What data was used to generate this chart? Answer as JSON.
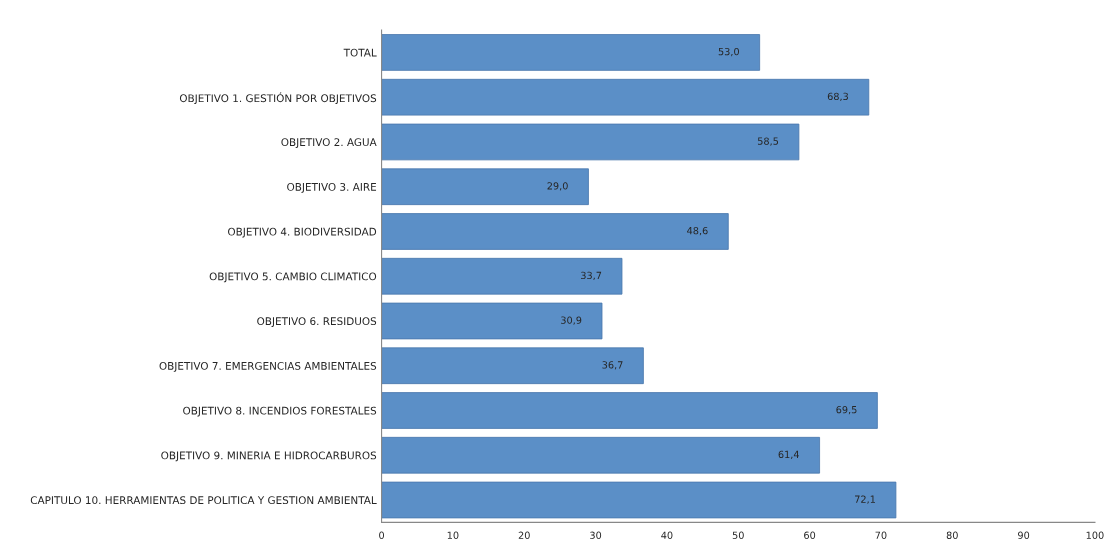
{
  "chart_data": {
    "type": "bar",
    "orientation": "horizontal",
    "categories": [
      "TOTAL",
      "OBJETIVO 1. GESTIÓN POR OBJETIVOS",
      "OBJETIVO 2. AGUA",
      "OBJETIVO 3. AIRE",
      "OBJETIVO 4. BIODIVERSIDAD",
      "OBJETIVO 5. CAMBIO CLIMATICO",
      "OBJETIVO 6. RESIDUOS",
      "OBJETIVO 7. EMERGENCIAS AMBIENTALES",
      "OBJETIVO 8. INCENDIOS FORESTALES",
      "OBJETIVO 9. MINERIA E HIDROCARBUROS",
      "CAPITULO 10. HERRAMIENTAS DE POLITICA Y GESTION AMBIENTAL"
    ],
    "values": [
      53.0,
      68.3,
      58.5,
      29.0,
      48.6,
      33.7,
      30.9,
      36.7,
      69.5,
      61.4,
      72.1
    ],
    "value_labels": [
      "53,0",
      "68,3",
      "58,5",
      "29,0",
      "48,6",
      "33,7",
      "30,9",
      "36,7",
      "69,5",
      "61,4",
      "72,1"
    ],
    "color": "#5b8fc7",
    "xlim": [
      0,
      100
    ],
    "xticks": [
      0,
      10,
      20,
      30,
      40,
      50,
      60,
      70,
      80,
      90,
      100
    ],
    "grid": false,
    "legend": false
  }
}
